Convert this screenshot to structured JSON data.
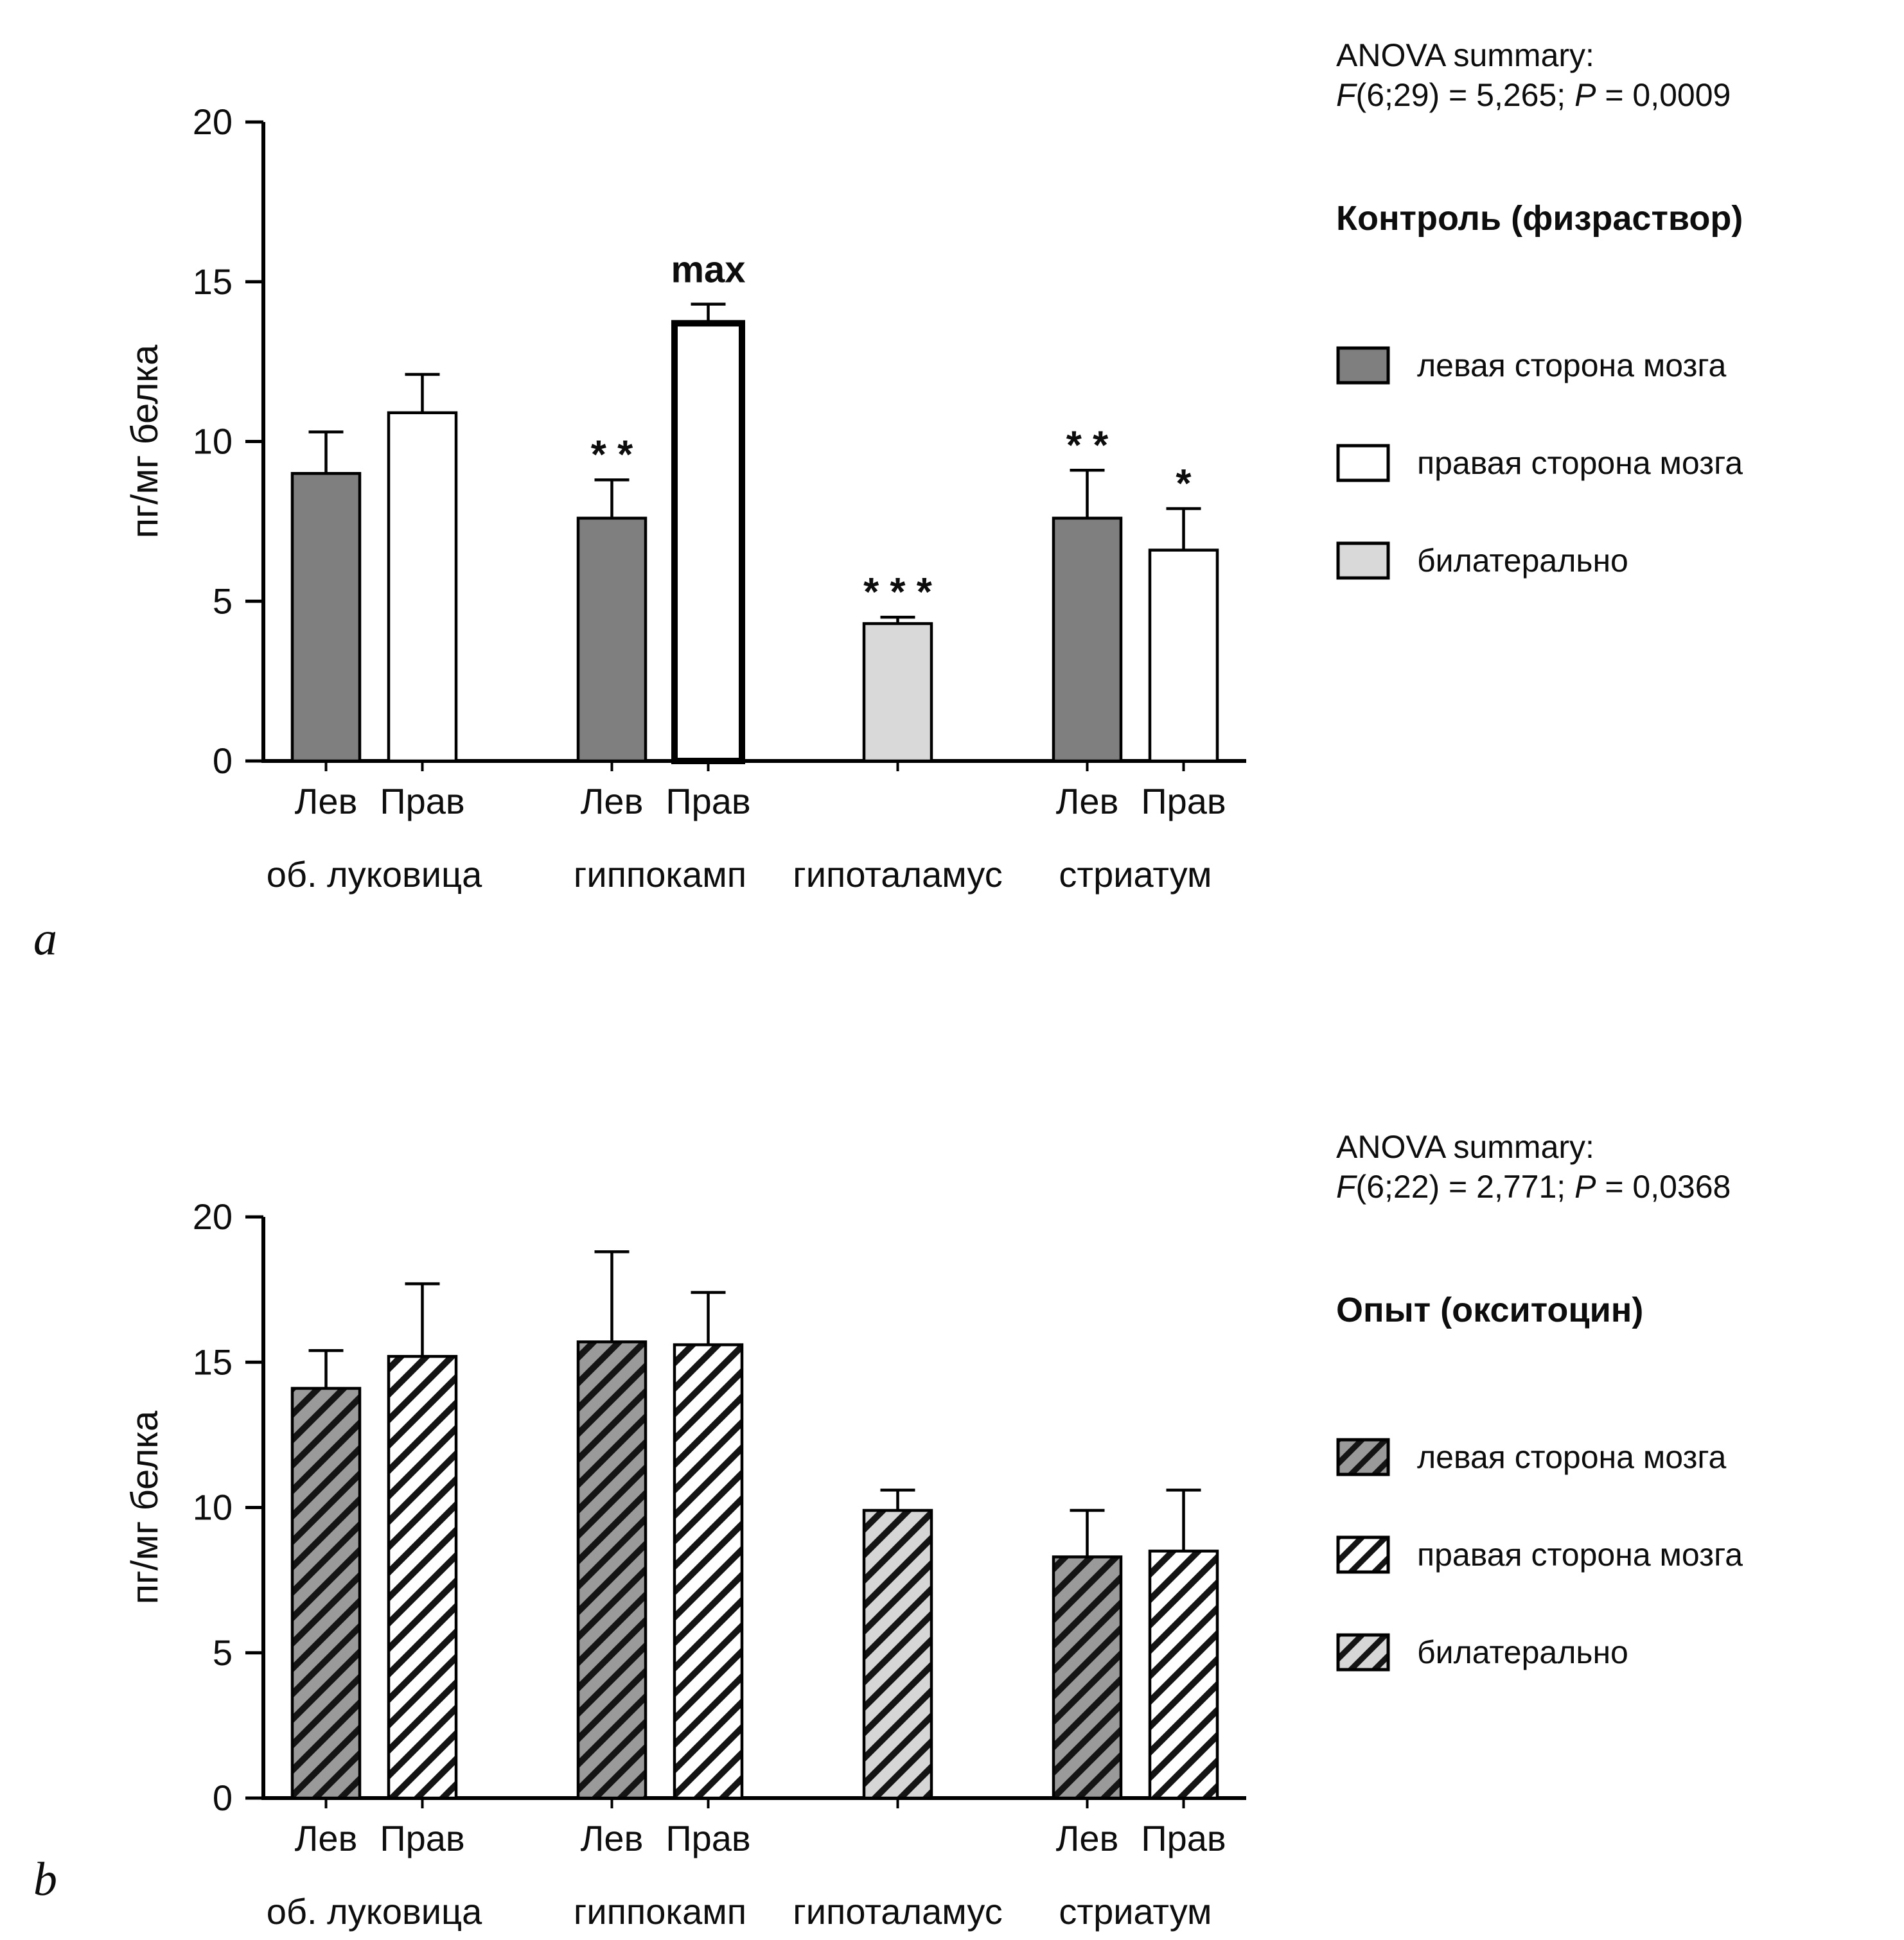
{
  "figure_note": "Two-panel bar chart figure, protein concentration (pg/mg) in rat brain regions",
  "chart_data": [
    {
      "type": "bar",
      "panel_label": "a",
      "anova_title": "ANOVA summary:",
      "anova_stats": "F(6;29) = 5,265; P = 0,0009",
      "legend_title": "Контроль (физраствор)",
      "legend_position": "right",
      "grid": false,
      "hatched": false,
      "ylabel": "пг/мг белка",
      "ylim": [
        0,
        20
      ],
      "yticks": [
        0,
        5,
        10,
        15,
        20
      ],
      "colors": {
        "left": "#7f7f7f",
        "right": "#ffffff",
        "bilateral": "#d9d9d9"
      },
      "bar_border": "#000000",
      "legend": [
        {
          "label": "левая сторона мозга",
          "style": "left"
        },
        {
          "label": "правая сторона мозга",
          "style": "right"
        },
        {
          "label": "билатерально",
          "style": "bilateral"
        }
      ],
      "groups": [
        {
          "label": "об. луковица",
          "bars": [
            {
              "side": "Лев",
              "style": "left",
              "value": 9.0,
              "error": 1.3,
              "annotation": ""
            },
            {
              "side": "Прав",
              "style": "right",
              "value": 10.9,
              "error": 1.2,
              "annotation": ""
            }
          ]
        },
        {
          "label": "гиппокамп",
          "bars": [
            {
              "side": "Лев",
              "style": "left",
              "value": 7.6,
              "error": 1.2,
              "annotation": "* *"
            },
            {
              "side": "Прав",
              "style": "right",
              "value": 13.7,
              "error": 0.6,
              "annotation": "max",
              "annotation_bold": true,
              "thick_border": true
            }
          ]
        },
        {
          "label": "гипоталамус",
          "bars": [
            {
              "side": "",
              "style": "bilateral",
              "value": 4.3,
              "error": 0.2,
              "annotation": "* * *"
            }
          ]
        },
        {
          "label": "стриатум",
          "bars": [
            {
              "side": "Лев",
              "style": "left",
              "value": 7.6,
              "error": 1.5,
              "annotation": "* *"
            },
            {
              "side": "Прав",
              "style": "right",
              "value": 6.6,
              "error": 1.3,
              "annotation": "*"
            }
          ]
        }
      ]
    },
    {
      "type": "bar",
      "panel_label": "b",
      "anova_title": "ANOVA summary:",
      "anova_stats": "F(6;22) = 2,771; P = 0,0368",
      "legend_title": "Опыт (окситоцин)",
      "legend_position": "right",
      "grid": false,
      "hatched": true,
      "hatch_color": "#141414",
      "ylabel": "пг/мг белка",
      "ylim": [
        0,
        20
      ],
      "yticks": [
        0,
        5,
        10,
        15,
        20
      ],
      "colors": {
        "left": "#9a9a9a",
        "right": "#ffffff",
        "bilateral": "#d6d6d6"
      },
      "bar_border": "#000000",
      "legend": [
        {
          "label": "левая сторона мозга",
          "style": "left"
        },
        {
          "label": "правая сторона мозга",
          "style": "right"
        },
        {
          "label": "билатерально",
          "style": "bilateral"
        }
      ],
      "groups": [
        {
          "label": "об. луковица",
          "bars": [
            {
              "side": "Лев",
              "style": "left",
              "value": 14.1,
              "error": 1.3,
              "annotation": ""
            },
            {
              "side": "Прав",
              "style": "right",
              "value": 15.2,
              "error": 2.5,
              "annotation": ""
            }
          ]
        },
        {
          "label": "гиппокамп",
          "bars": [
            {
              "side": "Лев",
              "style": "left",
              "value": 15.7,
              "error": 3.1,
              "annotation": ""
            },
            {
              "side": "Прав",
              "style": "right",
              "value": 15.6,
              "error": 1.8,
              "annotation": ""
            }
          ]
        },
        {
          "label": "гипоталамус",
          "bars": [
            {
              "side": "",
              "style": "bilateral",
              "value": 9.9,
              "error": 0.7,
              "annotation": ""
            }
          ]
        },
        {
          "label": "стриатум",
          "bars": [
            {
              "side": "Лев",
              "style": "left",
              "value": 8.3,
              "error": 1.6,
              "annotation": ""
            },
            {
              "side": "Прав",
              "style": "right",
              "value": 8.5,
              "error": 2.1,
              "annotation": ""
            }
          ]
        }
      ]
    }
  ]
}
